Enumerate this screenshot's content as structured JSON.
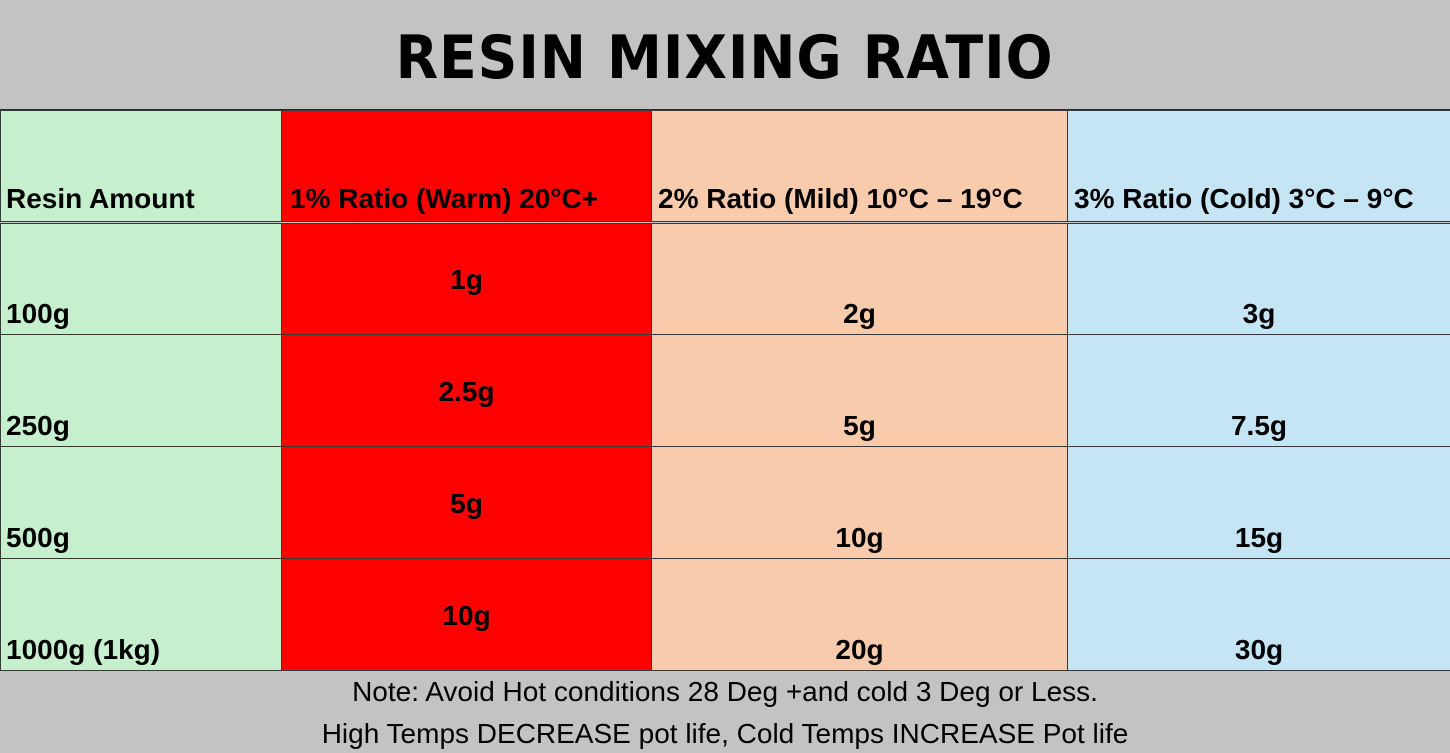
{
  "title": "RESIN MIXING RATIO",
  "colors": {
    "background": "#c3c3c3",
    "resin_column": "#c6efce",
    "warm_column": "#ff0000",
    "mild_column": "#f8cbad",
    "cold_column": "#c5e5f5"
  },
  "table": {
    "headers": [
      "Resin Amount",
      "1% Ratio (Warm) 20°C+",
      "2% Ratio (Mild) 10°C – 19°C",
      "3% Ratio (Cold) 3°C – 9°C"
    ],
    "rows": [
      [
        "100g",
        "1g",
        "2g",
        "3g"
      ],
      [
        "250g",
        "2.5g",
        "5g",
        "7.5g"
      ],
      [
        "500g",
        "5g",
        "10g",
        "15g"
      ],
      [
        "1000g (1kg)",
        "10g",
        "20g",
        "30g"
      ]
    ]
  },
  "note": {
    "line1": "Note: Avoid Hot conditions 28 Deg +and cold 3 Deg or Less.",
    "line2": "High Temps DECREASE pot life, Cold Temps INCREASE Pot life"
  }
}
